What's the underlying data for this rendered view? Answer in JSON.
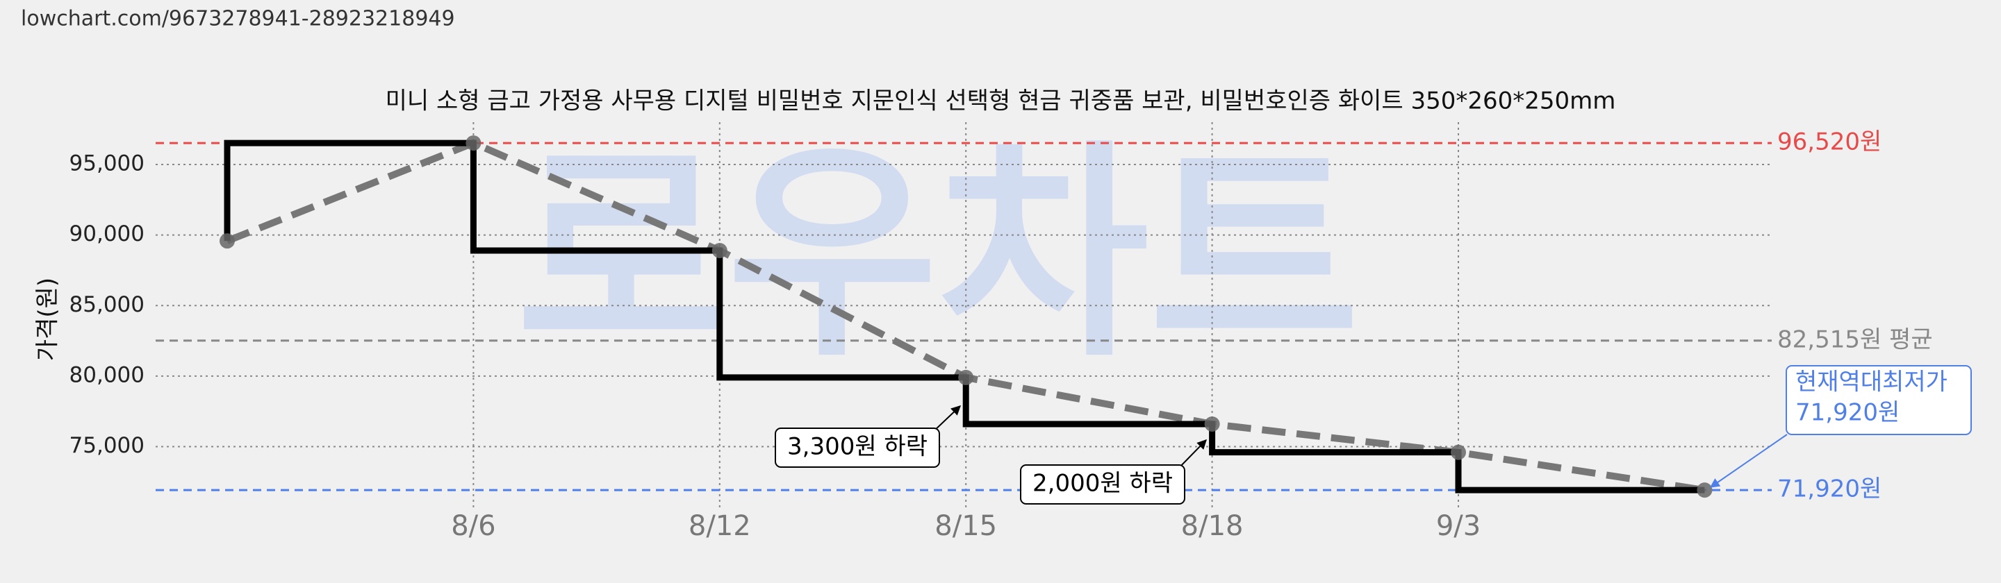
{
  "url": "lowchart.com/9673278941-28923218949",
  "chart_data": {
    "type": "step-line",
    "title": "미니 소형 금고 가정용 사무용 디지털 비밀번호 지문인식 선택형 현금 귀중품 보관, 비밀번호인증 화이트 350*260*250mm",
    "ylabel": "가격(원)",
    "watermark": "로우차트",
    "categories": [
      null,
      "8/6",
      "8/12",
      "8/15",
      "8/18",
      "9/3",
      null
    ],
    "series": [
      {
        "color": "#000000",
        "trend_color": "#777777",
        "values": [
          89580,
          96520,
          88900,
          79900,
          76600,
          74600,
          71920
        ]
      }
    ],
    "ylim": [
      70500,
      98000
    ],
    "yticks": [
      {
        "value": 75000,
        "label": "75,000"
      },
      {
        "value": 80000,
        "label": "80,000"
      },
      {
        "value": 85000,
        "label": "85,000"
      },
      {
        "value": 90000,
        "label": "90,000"
      },
      {
        "value": 95000,
        "label": "95,000"
      }
    ],
    "grid": true,
    "reference_lines": [
      {
        "value": 96520,
        "label": "96,520원",
        "color": "#e84a4a"
      },
      {
        "value": 82515,
        "label": "82,515원 평균",
        "color": "#888888"
      },
      {
        "value": 71920,
        "label": "71,920원",
        "color": "#4f7fe8"
      }
    ],
    "annotations": [
      {
        "text": "3,300원 하락"
      },
      {
        "text": "2,000원 하락"
      }
    ],
    "callout": {
      "lines": [
        "현재역대최저가",
        "71,920원"
      ],
      "color": "#4f7fe8"
    }
  }
}
